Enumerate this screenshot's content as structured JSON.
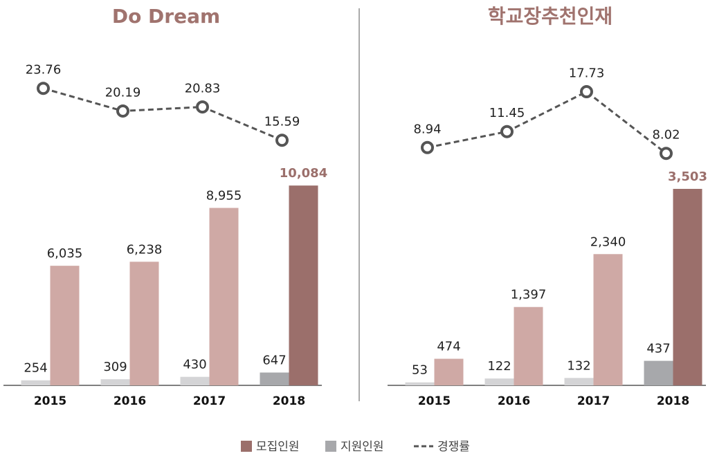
{
  "legend": [
    {
      "name": "모집인원",
      "color": "#9b6f6b"
    },
    {
      "name": "지원인원",
      "color": "#a7a8ab"
    },
    {
      "name": "경쟁률",
      "color": "#555555"
    }
  ],
  "chart_data": [
    {
      "type": "bar",
      "title": "Do Dream",
      "categories": [
        "2015",
        "2016",
        "2017",
        "2018"
      ],
      "series": [
        {
          "legend": 1,
          "colors": [
            "#d4d4d6",
            "#d4d4d6",
            "#d4d4d6",
            "#a7a8ab"
          ],
          "label_colors": [
            "#222222",
            "#222222",
            "#222222",
            "#222222"
          ],
          "values": [
            254,
            309,
            430,
            647
          ],
          "value_labels": [
            "254",
            "309",
            "430",
            "647"
          ]
        },
        {
          "legend": 0,
          "colors": [
            "#cfa9a5",
            "#cfa9a5",
            "#cfa9a5",
            "#9b6f6b"
          ],
          "label_colors": [
            "#222222",
            "#222222",
            "#222222",
            "#9b6f6b"
          ],
          "values": [
            6035,
            6238,
            8955,
            10084
          ],
          "value_labels": [
            "6,035",
            "6,238",
            "8,955",
            "10,084"
          ]
        },
        {
          "legend": 2,
          "axis": "y2",
          "color": "#555555",
          "values": [
            23.76,
            20.19,
            20.83,
            15.59
          ]
        }
      ],
      "ylim": [
        0,
        18400
      ],
      "y2lim": [
        -23,
        34.4
      ]
    },
    {
      "type": "bar",
      "title": "학교장추천인재",
      "categories": [
        "2015",
        "2016",
        "2017",
        "2018"
      ],
      "series": [
        {
          "legend": 1,
          "colors": [
            "#d4d4d6",
            "#d4d4d6",
            "#d4d4d6",
            "#a7a8ab"
          ],
          "label_colors": [
            "#222222",
            "#222222",
            "#222222",
            "#222222"
          ],
          "values": [
            53,
            122,
            132,
            437
          ],
          "value_labels": [
            "53",
            "122",
            "132",
            "437"
          ]
        },
        {
          "legend": 0,
          "colors": [
            "#cfa9a5",
            "#cfa9a5",
            "#cfa9a5",
            "#9b6f6b"
          ],
          "label_colors": [
            "#222222",
            "#222222",
            "#222222",
            "#9b6f6b"
          ],
          "values": [
            474,
            1397,
            2340,
            3503
          ],
          "value_labels": [
            "474",
            "1,397",
            "2,340",
            "3,503"
          ]
        },
        {
          "legend": 2,
          "axis": "y2",
          "color": "#555555",
          "values": [
            8.94,
            11.45,
            17.73,
            8.02
          ]
        }
      ],
      "ylim": [
        0,
        6500
      ],
      "y2lim": [
        -28.5,
        28.9
      ]
    }
  ]
}
